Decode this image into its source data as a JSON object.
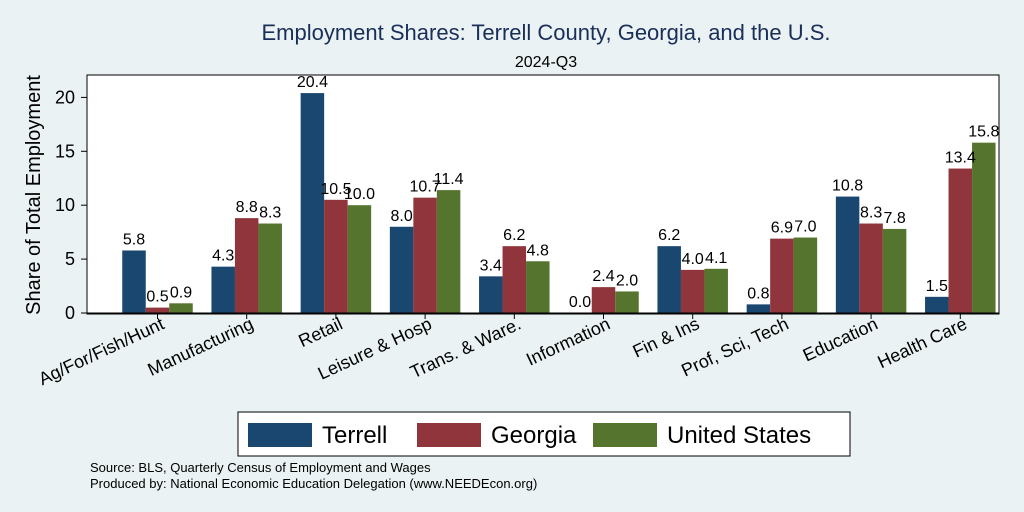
{
  "chart_data": {
    "type": "bar",
    "title": "Employment Shares: Terrell County, Georgia, and the U.S.",
    "subtitle": "2024-Q3",
    "ylabel": "Share of Total Employment",
    "xlabel": "",
    "ylim": [
      0,
      22
    ],
    "yticks": [
      0,
      5,
      10,
      15,
      20
    ],
    "grid": false,
    "legend_position": "bottom",
    "categories": [
      "Ag/For/Fish/Hunt",
      "Manufacturing",
      "Retail",
      "Leisure & Hosp",
      "Trans. & Ware.",
      "Information",
      "Fin & Ins",
      "Prof, Sci, Tech",
      "Education",
      "Health Care"
    ],
    "series": [
      {
        "name": "Terrell",
        "color": "#1a476f",
        "values": [
          5.8,
          4.3,
          20.4,
          8.0,
          3.4,
          0.0,
          6.2,
          0.8,
          10.8,
          1.5
        ],
        "labels": [
          "5.8",
          "4.3",
          "20.4",
          "8.0",
          "3.4",
          "0.0",
          "6.2",
          "0.8",
          "10.8",
          "1.5"
        ]
      },
      {
        "name": "Georgia",
        "color": "#90353b",
        "values": [
          0.5,
          8.8,
          10.5,
          10.7,
          6.2,
          2.4,
          4.0,
          6.9,
          8.3,
          13.4
        ],
        "labels": [
          "0.5",
          "8.8",
          "10.5",
          "10.7",
          "6.2",
          "2.4",
          "4.0",
          "6.9",
          "8.3",
          "13.4"
        ]
      },
      {
        "name": "United States",
        "color": "#55752f",
        "values": [
          0.9,
          8.3,
          10.0,
          11.4,
          4.8,
          2.0,
          4.1,
          7.0,
          7.8,
          15.8
        ],
        "labels": [
          "0.9",
          "8.3",
          "10.0",
          "11.4",
          "4.8",
          "2.0",
          "4.1",
          "7.0",
          "7.8",
          "15.8"
        ]
      }
    ]
  },
  "source": {
    "line1": "Source: BLS, Quarterly Census of Employment and Wages",
    "line2": "Produced by: National Economic Education Delegation (www.NEEDEcon.org)"
  }
}
